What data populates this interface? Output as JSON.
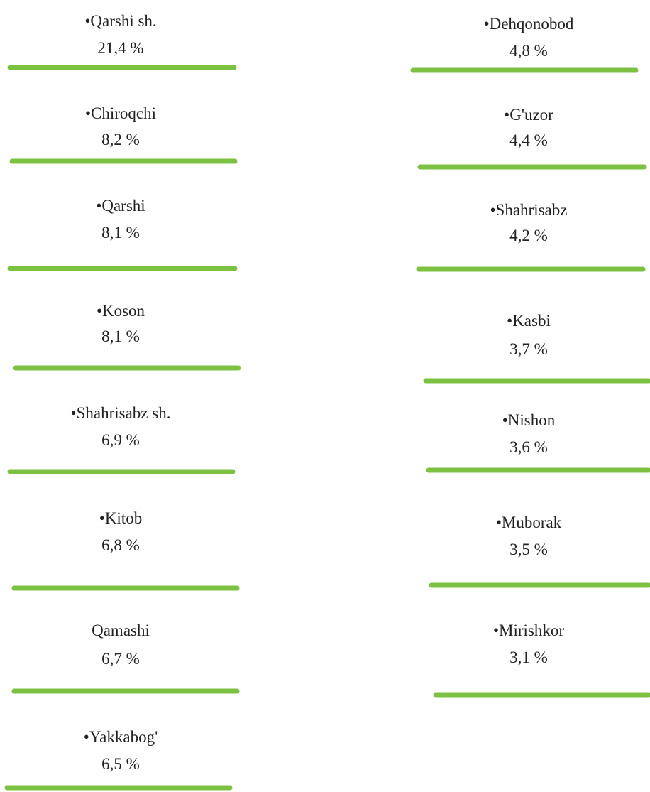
{
  "left": [
    {
      "name": "•Qarshi sh.",
      "value": "21,4 %"
    },
    {
      "name": "•Chiroqchi",
      "value": "8,2 %"
    },
    {
      "name": "•Qarshi",
      "value": "8,1 %"
    },
    {
      "name": "•Koson",
      "value": "8,1 %"
    },
    {
      "name": "•Shahrisabz sh.",
      "value": "6,9 %"
    },
    {
      "name": "•Kitob",
      "value": "6,8 %"
    },
    {
      "name": "Qamashi",
      "value": "6,7 %"
    },
    {
      "name": "•Yakkabog'",
      "value": "6,5 %"
    }
  ],
  "right": [
    {
      "name": "•Dehqonobod",
      "value": "4,8 %"
    },
    {
      "name": "•G'uzor",
      "value": "4,4 %"
    },
    {
      "name": "•Shahrisabz",
      "value": "4,2 %"
    },
    {
      "name": "•Kasbi",
      "value": "3,7 %"
    },
    {
      "name": "•Nishon",
      "value": "3,6 %"
    },
    {
      "name": "•Muborak",
      "value": "3,5 %"
    },
    {
      "name": "•Mirishkor",
      "value": "3,1 %"
    }
  ]
}
